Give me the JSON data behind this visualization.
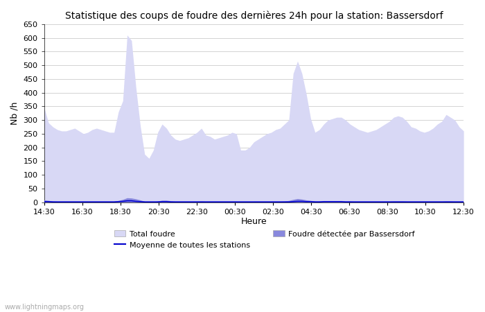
{
  "title": "Statistique des coups de foudre des dernières 24h pour la station: Bassersdorf",
  "ylabel": "Nb /h",
  "xlabel": "Heure",
  "ylim": [
    0,
    650
  ],
  "yticks": [
    0,
    50,
    100,
    150,
    200,
    250,
    300,
    350,
    400,
    450,
    500,
    550,
    600,
    650
  ],
  "xtick_labels": [
    "14:30",
    "16:30",
    "18:30",
    "20:30",
    "22:30",
    "00:30",
    "02:30",
    "04:30",
    "06:30",
    "08:30",
    "10:30",
    "12:30"
  ],
  "background_color": "#ffffff",
  "fill_total_color": "#d8d8f5",
  "fill_detected_color": "#8888dd",
  "line_color": "#0000cc",
  "watermark": "www.lightningmaps.org",
  "total_foudre": [
    345,
    290,
    275,
    265,
    260,
    260,
    265,
    270,
    260,
    250,
    255,
    265,
    270,
    265,
    260,
    255,
    255,
    330,
    370,
    610,
    590,
    420,
    280,
    175,
    160,
    190,
    255,
    285,
    270,
    245,
    230,
    225,
    230,
    235,
    245,
    255,
    270,
    245,
    240,
    230,
    235,
    240,
    245,
    255,
    250,
    190,
    190,
    200,
    220,
    230,
    240,
    250,
    255,
    265,
    270,
    285,
    300,
    470,
    515,
    470,
    395,
    305,
    255,
    265,
    285,
    300,
    305,
    310,
    310,
    300,
    285,
    275,
    265,
    260,
    255,
    260,
    265,
    275,
    285,
    295,
    310,
    315,
    310,
    295,
    275,
    270,
    260,
    255,
    260,
    270,
    285,
    295,
    320,
    310,
    300,
    275,
    260
  ],
  "detected_foudre": [
    8,
    6,
    4,
    3,
    3,
    3,
    3,
    3,
    3,
    3,
    3,
    3,
    3,
    3,
    3,
    3,
    3,
    6,
    10,
    16,
    15,
    12,
    8,
    3,
    2,
    2,
    4,
    7,
    7,
    5,
    3,
    3,
    3,
    3,
    3,
    3,
    4,
    3,
    3,
    3,
    3,
    3,
    3,
    3,
    3,
    2,
    2,
    2,
    3,
    3,
    3,
    3,
    3,
    3,
    3,
    4,
    6,
    10,
    13,
    11,
    8,
    6,
    4,
    4,
    4,
    4,
    4,
    4,
    4,
    4,
    4,
    3,
    3,
    3,
    3,
    3,
    3,
    3,
    3,
    3,
    4,
    4,
    4,
    3,
    3,
    3,
    3,
    3,
    3,
    3,
    3,
    3,
    4,
    4,
    3,
    3,
    3
  ],
  "avg_line": [
    2,
    2,
    1,
    1,
    1,
    1,
    1,
    1,
    1,
    1,
    1,
    1,
    1,
    1,
    1,
    1,
    1,
    2,
    3,
    5,
    5,
    3,
    2,
    1,
    1,
    1,
    1,
    2,
    2,
    1,
    1,
    1,
    1,
    1,
    1,
    1,
    1,
    1,
    1,
    1,
    1,
    1,
    1,
    1,
    1,
    1,
    1,
    1,
    1,
    1,
    1,
    1,
    1,
    1,
    1,
    1,
    1,
    2,
    3,
    3,
    2,
    2,
    1,
    1,
    2,
    2,
    2,
    2,
    2,
    1,
    1,
    1,
    1,
    1,
    1,
    1,
    1,
    1,
    1,
    1,
    1,
    1,
    1,
    1,
    1,
    1,
    1,
    1,
    1,
    1,
    1,
    1,
    1,
    1,
    1,
    1,
    1
  ],
  "figsize": [
    7.0,
    4.5
  ],
  "dpi": 100
}
